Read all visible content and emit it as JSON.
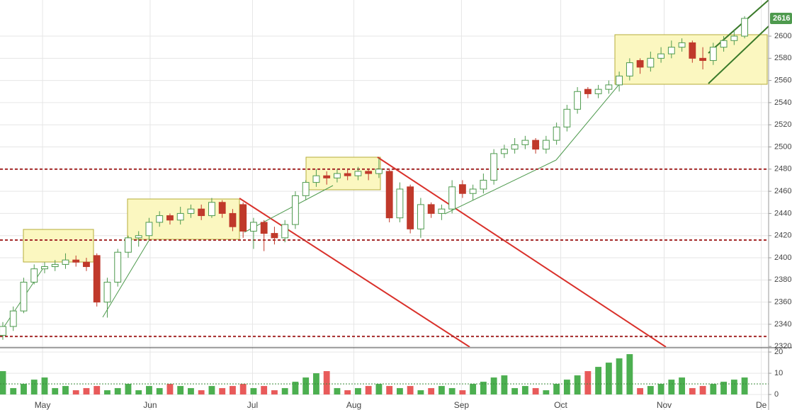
{
  "chart_data": {
    "type": "candlestick",
    "candles": [
      [
        2330,
        2342,
        2326,
        2338
      ],
      [
        2338,
        2356,
        2334,
        2352
      ],
      [
        2352,
        2382,
        2350,
        2378
      ],
      [
        2378,
        2394,
        2376,
        2390
      ],
      [
        2390,
        2396,
        2386,
        2392
      ],
      [
        2392,
        2398,
        2388,
        2394
      ],
      [
        2394,
        2404,
        2390,
        2398
      ],
      [
        2398,
        2402,
        2392,
        2396
      ],
      [
        2396,
        2400,
        2388,
        2392
      ],
      [
        2402,
        2404,
        2356,
        2360
      ],
      [
        2360,
        2382,
        2346,
        2378
      ],
      [
        2378,
        2408,
        2374,
        2405
      ],
      [
        2405,
        2420,
        2400,
        2418
      ],
      [
        2418,
        2424,
        2410,
        2420
      ],
      [
        2420,
        2436,
        2416,
        2432
      ],
      [
        2432,
        2442,
        2428,
        2438
      ],
      [
        2438,
        2440,
        2430,
        2434
      ],
      [
        2434,
        2446,
        2430,
        2440
      ],
      [
        2440,
        2448,
        2436,
        2444
      ],
      [
        2444,
        2448,
        2434,
        2438
      ],
      [
        2438,
        2454,
        2436,
        2450
      ],
      [
        2450,
        2452,
        2436,
        2440
      ],
      [
        2440,
        2444,
        2424,
        2428
      ],
      [
        2448,
        2450,
        2418,
        2424
      ],
      [
        2424,
        2436,
        2408,
        2432
      ],
      [
        2432,
        2434,
        2406,
        2422
      ],
      [
        2422,
        2428,
        2412,
        2418
      ],
      [
        2418,
        2434,
        2414,
        2430
      ],
      [
        2430,
        2460,
        2426,
        2456
      ],
      [
        2456,
        2470,
        2452,
        2468
      ],
      [
        2468,
        2480,
        2464,
        2474
      ],
      [
        2474,
        2478,
        2466,
        2472
      ],
      [
        2472,
        2480,
        2468,
        2476
      ],
      [
        2476,
        2480,
        2470,
        2474
      ],
      [
        2474,
        2482,
        2470,
        2478
      ],
      [
        2478,
        2480,
        2470,
        2476
      ],
      [
        2476,
        2490,
        2472,
        2480
      ],
      [
        2478,
        2480,
        2432,
        2436
      ],
      [
        2436,
        2468,
        2432,
        2462
      ],
      [
        2464,
        2466,
        2422,
        2426
      ],
      [
        2426,
        2454,
        2418,
        2448
      ],
      [
        2448,
        2450,
        2436,
        2440
      ],
      [
        2440,
        2448,
        2434,
        2444
      ],
      [
        2444,
        2470,
        2440,
        2464
      ],
      [
        2466,
        2470,
        2454,
        2458
      ],
      [
        2458,
        2466,
        2452,
        2462
      ],
      [
        2462,
        2476,
        2458,
        2470
      ],
      [
        2470,
        2498,
        2466,
        2494
      ],
      [
        2494,
        2502,
        2490,
        2498
      ],
      [
        2498,
        2508,
        2494,
        2502
      ],
      [
        2502,
        2510,
        2498,
        2506
      ],
      [
        2506,
        2508,
        2494,
        2498
      ],
      [
        2498,
        2510,
        2494,
        2506
      ],
      [
        2506,
        2522,
        2502,
        2518
      ],
      [
        2518,
        2538,
        2514,
        2534
      ],
      [
        2534,
        2554,
        2530,
        2550
      ],
      [
        2552,
        2554,
        2544,
        2548
      ],
      [
        2548,
        2556,
        2544,
        2552
      ],
      [
        2552,
        2560,
        2548,
        2556
      ],
      [
        2556,
        2568,
        2550,
        2564
      ],
      [
        2564,
        2580,
        2560,
        2576
      ],
      [
        2578,
        2580,
        2566,
        2572
      ],
      [
        2572,
        2586,
        2568,
        2580
      ],
      [
        2580,
        2590,
        2576,
        2584
      ],
      [
        2584,
        2596,
        2580,
        2590
      ],
      [
        2590,
        2598,
        2586,
        2594
      ],
      [
        2594,
        2596,
        2576,
        2580
      ],
      [
        2580,
        2590,
        2570,
        2578
      ],
      [
        2578,
        2594,
        2574,
        2590
      ],
      [
        2590,
        2600,
        2586,
        2596
      ],
      [
        2596,
        2606,
        2592,
        2600
      ],
      [
        2600,
        2618,
        2598,
        2616
      ]
    ],
    "volume": [
      11,
      3,
      5,
      7,
      8,
      3,
      4,
      2,
      3,
      4,
      2,
      3,
      5,
      2,
      4,
      3,
      5,
      4,
      3,
      2,
      4,
      3,
      4,
      5,
      3,
      4,
      2,
      3,
      6,
      8,
      10,
      11,
      3,
      2,
      3,
      4,
      5,
      4,
      3,
      4,
      2,
      3,
      4,
      3,
      2,
      5,
      6,
      8,
      9,
      3,
      4,
      3,
      2,
      5,
      7,
      9,
      11,
      13,
      15,
      17,
      19,
      3,
      4,
      5,
      7,
      8,
      3,
      4,
      5,
      6,
      7,
      8
    ],
    "volume_avg": 5,
    "up_color": "#4e9a4e",
    "down_color": "#c0392b",
    "vol_up_color": "#4caf50",
    "vol_down_color": "#e85a5a",
    "hlines": [
      2480,
      2416,
      2329
    ],
    "hline_color": "#a52a2a",
    "ylim": [
      2319.5,
      2632.6
    ],
    "yticks": [
      2320,
      2340,
      2360,
      2380,
      2400,
      2420,
      2440,
      2460,
      2480,
      2500,
      2520,
      2540,
      2560,
      2580,
      2600
    ],
    "vol_ylim": [
      -7.3,
      21.7
    ],
    "vol_yticks": [
      0,
      10,
      20
    ],
    "xlim": [
      -0.27,
      73.3
    ],
    "xticks": [
      {
        "value": 3.8,
        "label": "May"
      },
      {
        "value": 14.1,
        "label": "Jun"
      },
      {
        "value": 23.9,
        "label": "Jul"
      },
      {
        "value": 33.6,
        "label": "Aug"
      },
      {
        "value": 43.9,
        "label": "Sep"
      },
      {
        "value": 53.4,
        "label": "Oct"
      },
      {
        "value": 63.3,
        "label": "Nov"
      },
      {
        "value": 72.6,
        "label": "De"
      }
    ],
    "grid": true
  }
}
